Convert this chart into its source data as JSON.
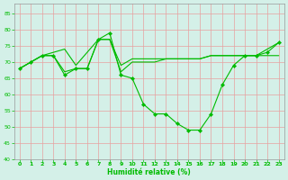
{
  "background_color": "#d4f0e8",
  "grid_color": "#e8a0a0",
  "line_color": "#00bb00",
  "marker_color": "#00bb00",
  "xlabel": "Humidité relative (%)",
  "ylim": [
    40,
    88
  ],
  "xlim": [
    -0.5,
    23.5
  ],
  "yticks": [
    40,
    45,
    50,
    55,
    60,
    65,
    70,
    75,
    80,
    85
  ],
  "xticks": [
    0,
    1,
    2,
    3,
    4,
    5,
    6,
    7,
    8,
    9,
    10,
    11,
    12,
    13,
    14,
    15,
    16,
    17,
    18,
    19,
    20,
    21,
    22,
    23
  ],
  "curve_main": {
    "x": [
      0,
      1,
      2,
      3,
      4,
      5,
      6,
      7,
      8,
      9,
      10,
      11,
      12,
      13,
      14,
      15,
      16,
      17,
      18,
      19,
      20,
      21,
      22,
      23
    ],
    "y": [
      68,
      70,
      72,
      72,
      66,
      68,
      68,
      77,
      79,
      66,
      65,
      57,
      54,
      54,
      51,
      49,
      49,
      54,
      63,
      69,
      72,
      72,
      73,
      76
    ]
  },
  "curve_flat1": {
    "x": [
      0,
      1,
      2,
      3,
      4,
      5,
      6,
      7,
      8,
      9,
      10,
      11,
      12,
      13,
      14,
      15,
      16,
      17,
      18,
      19,
      20,
      21,
      22,
      23
    ],
    "y": [
      68,
      70,
      72,
      73,
      74,
      69,
      73,
      77,
      77,
      69,
      71,
      71,
      71,
      71,
      71,
      71,
      71,
      72,
      72,
      72,
      72,
      72,
      72,
      72
    ]
  },
  "curve_flat2": {
    "x": [
      0,
      1,
      2,
      3,
      4,
      5,
      6,
      7,
      8,
      9,
      10,
      11,
      12,
      13,
      14,
      15,
      16,
      17,
      18,
      19,
      20,
      21,
      22,
      23
    ],
    "y": [
      68,
      70,
      72,
      72,
      67,
      68,
      68,
      77,
      77,
      67,
      70,
      70,
      70,
      71,
      71,
      71,
      71,
      72,
      72,
      72,
      72,
      72,
      74,
      76
    ]
  },
  "figsize": [
    3.2,
    2.0
  ],
  "dpi": 100,
  "xlabel_fontsize": 5.5,
  "tick_fontsize": 4.5,
  "linewidth": 0.8,
  "markersize": 2.2
}
